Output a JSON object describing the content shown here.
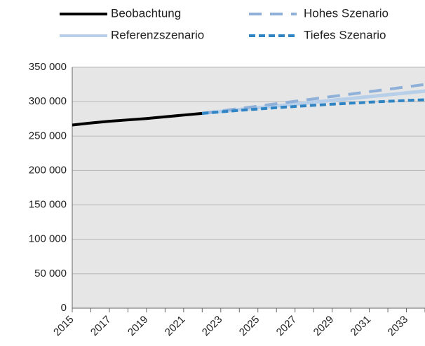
{
  "chart_data": {
    "type": "line",
    "x": [
      2015,
      2016,
      2017,
      2018,
      2019,
      2020,
      2021,
      2022,
      2023,
      2024,
      2025,
      2026,
      2027,
      2028,
      2029,
      2030,
      2031,
      2032,
      2033,
      2034
    ],
    "series": [
      {
        "name": "Beobachtung",
        "color": "#000000",
        "dash": "none",
        "values": [
          266000,
          269000,
          271500,
          273500,
          275500,
          278000,
          280500,
          283000,
          null,
          null,
          null,
          null,
          null,
          null,
          null,
          null,
          null,
          null,
          null,
          null
        ]
      },
      {
        "name": "Hohes Szenario",
        "color": "#8fb0d8",
        "dash": "18 12",
        "values": [
          null,
          null,
          null,
          null,
          null,
          null,
          null,
          283000,
          286500,
          290000,
          293500,
          297000,
          300500,
          304000,
          307500,
          311000,
          314500,
          318000,
          321500,
          325000
        ]
      },
      {
        "name": "Referenzszenario",
        "color": "#b8cfe9",
        "dash": "none",
        "values": [
          null,
          null,
          null,
          null,
          null,
          null,
          null,
          283000,
          285700,
          288400,
          291100,
          293800,
          296500,
          299200,
          301900,
          304600,
          307300,
          310000,
          312700,
          315400
        ]
      },
      {
        "name": "Tiefes Szenario",
        "color": "#2f84c4",
        "dash": "9 5",
        "values": [
          null,
          null,
          null,
          null,
          null,
          null,
          null,
          283000,
          285200,
          287300,
          289300,
          291200,
          293000,
          294700,
          296300,
          297800,
          299200,
          300500,
          301700,
          302800
        ]
      }
    ],
    "xlim": [
      2015,
      2034
    ],
    "xticks": [
      2015,
      2017,
      2019,
      2021,
      2023,
      2025,
      2027,
      2029,
      2031,
      2033
    ],
    "ylim": [
      0,
      350000
    ],
    "yticks": [
      0,
      {
        "value": 50000,
        "label": "50 000"
      },
      {
        "value": 100000,
        "label": "100 000"
      },
      {
        "value": 150000,
        "label": "150 000"
      },
      {
        "value": 200000,
        "label": "200 000"
      },
      {
        "value": 250000,
        "label": "250 000"
      },
      {
        "value": 300000,
        "label": "300 000"
      },
      {
        "value": 350000,
        "label": "350 000"
      }
    ],
    "grid": true
  }
}
